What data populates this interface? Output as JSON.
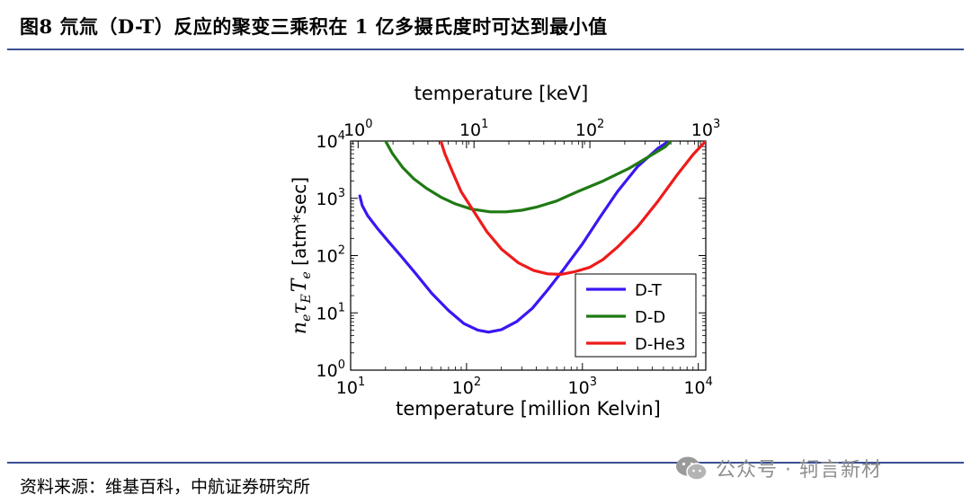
{
  "header": {
    "title": "图8 氘氚（D-T）反应的聚变三乘积在 1 亿多摄氏度时可达到最小值"
  },
  "footer": {
    "source": "资料来源：维基百科，中航证券研究所",
    "watermark": "公众号 · 轲言新材"
  },
  "chart_data": {
    "type": "line",
    "xlabel": "temperature  [million Kelvin]",
    "x2label": "temperature  [keV]",
    "ylabel_math": "n_e τ_E T_e",
    "ylabel_units": "[atm*sec]",
    "xscale": "log",
    "yscale": "log",
    "xlim": [
      10,
      11600
    ],
    "ylim": [
      1,
      10000
    ],
    "x2lim": [
      0.862,
      1000
    ],
    "x_ticks": [
      {
        "v": 10,
        "base": "10",
        "exp": "1"
      },
      {
        "v": 100,
        "base": "10",
        "exp": "2"
      },
      {
        "v": 1000,
        "base": "10",
        "exp": "3"
      },
      {
        "v": 10000,
        "base": "10",
        "exp": "4"
      }
    ],
    "x2_ticks": [
      {
        "v": 1,
        "base": "10",
        "exp": "0"
      },
      {
        "v": 10,
        "base": "10",
        "exp": "1"
      },
      {
        "v": 100,
        "base": "10",
        "exp": "2"
      },
      {
        "v": 1000,
        "base": "10",
        "exp": "3"
      }
    ],
    "y_ticks": [
      {
        "v": 1,
        "base": "10",
        "exp": "0"
      },
      {
        "v": 10,
        "base": "10",
        "exp": "1"
      },
      {
        "v": 100,
        "base": "10",
        "exp": "2"
      },
      {
        "v": 1000,
        "base": "10",
        "exp": "3"
      },
      {
        "v": 10000,
        "base": "10",
        "exp": "4"
      }
    ],
    "legend_position": "bottom-right",
    "series": [
      {
        "name": "D-T",
        "color": "#3c16f2",
        "points": [
          [
            12,
            1100
          ],
          [
            12.6,
            750
          ],
          [
            14,
            500
          ],
          [
            17,
            300
          ],
          [
            21,
            180
          ],
          [
            27,
            100
          ],
          [
            36,
            50
          ],
          [
            50,
            22
          ],
          [
            70,
            11
          ],
          [
            95,
            6.5
          ],
          [
            125,
            5
          ],
          [
            155,
            4.6
          ],
          [
            200,
            5.1
          ],
          [
            270,
            7
          ],
          [
            370,
            12
          ],
          [
            500,
            25
          ],
          [
            700,
            60
          ],
          [
            1000,
            160
          ],
          [
            1400,
            450
          ],
          [
            2000,
            1300
          ],
          [
            3000,
            3600
          ],
          [
            4500,
            7500
          ],
          [
            5600,
            10000
          ]
        ]
      },
      {
        "name": "D-D",
        "color": "#1f7a13",
        "points": [
          [
            20,
            10000
          ],
          [
            23,
            6000
          ],
          [
            28,
            3500
          ],
          [
            35,
            2200
          ],
          [
            45,
            1500
          ],
          [
            60,
            1050
          ],
          [
            80,
            800
          ],
          [
            110,
            650
          ],
          [
            160,
            580
          ],
          [
            220,
            580
          ],
          [
            300,
            620
          ],
          [
            400,
            700
          ],
          [
            600,
            900
          ],
          [
            900,
            1300
          ],
          [
            1500,
            2000
          ],
          [
            2500,
            3300
          ],
          [
            4000,
            5800
          ],
          [
            5200,
            8000
          ],
          [
            5800,
            10000
          ]
        ]
      },
      {
        "name": "D-He3",
        "color": "#ee1b1b",
        "points": [
          [
            60,
            10000
          ],
          [
            65,
            6000
          ],
          [
            75,
            3000
          ],
          [
            90,
            1300
          ],
          [
            115,
            600
          ],
          [
            150,
            260
          ],
          [
            200,
            130
          ],
          [
            280,
            75
          ],
          [
            380,
            55
          ],
          [
            500,
            48
          ],
          [
            650,
            47
          ],
          [
            850,
            52
          ],
          [
            1150,
            62
          ],
          [
            1500,
            85
          ],
          [
            2000,
            140
          ],
          [
            3000,
            320
          ],
          [
            4500,
            900
          ],
          [
            6500,
            2500
          ],
          [
            9000,
            5800
          ],
          [
            11600,
            10000
          ]
        ]
      }
    ]
  }
}
